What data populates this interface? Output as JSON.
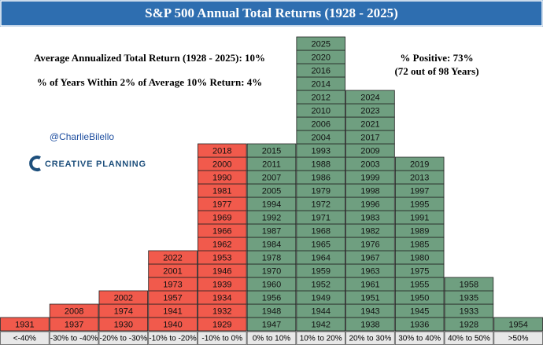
{
  "chart_data": {
    "type": "year-stack",
    "title": "S&P 500 Annual Total Returns (1928 - 2025)",
    "annotations": [
      "Average Annualized Total Return (1928 - 2025): 10%",
      "% of Years Within 2% of Average 10% Return: 4%",
      "% Positive: 73%",
      "(72 out of 98 Years)"
    ],
    "credit": "@CharlieBilello",
    "logo": "CREATIVE PLANNING",
    "categories": [
      "<-40%",
      "-30% to -40%",
      "-20% to -30%",
      "-10% to -20%",
      "-10% to 0%",
      "0% to 10%",
      "10% to 20%",
      "20% to 30%",
      "30% to 40%",
      "40% to 50%",
      ">50%"
    ],
    "colors": [
      "#f15a4c",
      "#f15a4c",
      "#f15a4c",
      "#f15a4c",
      "#f15a4c",
      "#6f9f80",
      "#6f9f80",
      "#6f9f80",
      "#6f9f80",
      "#6f9f80",
      "#6f9f80"
    ],
    "years": [
      [
        1931
      ],
      [
        1937,
        2008
      ],
      [
        1930,
        1974,
        2002
      ],
      [
        1940,
        1941,
        1957,
        1973,
        2001,
        2022
      ],
      [
        1929,
        1932,
        1934,
        1939,
        1946,
        1953,
        1962,
        1966,
        1969,
        1977,
        1981,
        1990,
        2000,
        2018
      ],
      [
        1947,
        1948,
        1956,
        1960,
        1970,
        1978,
        1984,
        1987,
        1992,
        1994,
        2005,
        2007,
        2011,
        2015
      ],
      [
        1942,
        1944,
        1949,
        1952,
        1959,
        1964,
        1965,
        1968,
        1971,
        1972,
        1979,
        1986,
        1988,
        1993,
        2004,
        2006,
        2010,
        2012,
        2014,
        2016,
        2020,
        2025
      ],
      [
        1938,
        1943,
        1951,
        1961,
        1963,
        1967,
        1976,
        1982,
        1983,
        1996,
        1998,
        1999,
        2003,
        2009,
        2017,
        2021,
        2023,
        2024
      ],
      [
        1936,
        1945,
        1950,
        1955,
        1975,
        1980,
        1985,
        1989,
        1991,
        1995,
        1997,
        2013,
        2019
      ],
      [
        1928,
        1933,
        1935,
        1958
      ],
      [
        1954
      ]
    ]
  }
}
